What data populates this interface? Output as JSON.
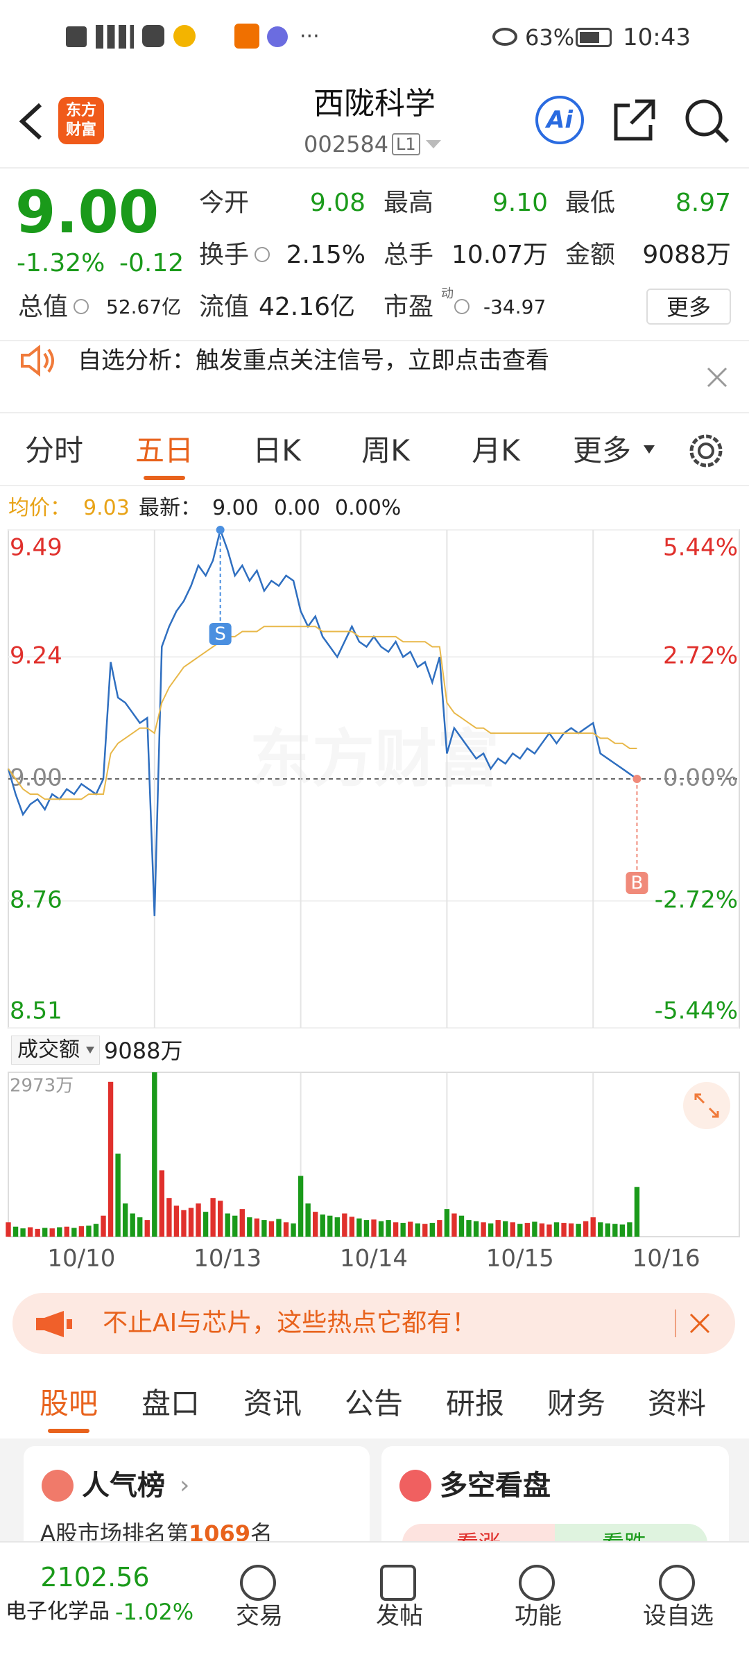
{
  "status_bar": {
    "battery": "63%",
    "time": "10:43"
  },
  "header": {
    "logo_lines": [
      "东方",
      "财富"
    ],
    "title": "西陇科学",
    "code": "002584",
    "level": "L1",
    "ai": "Ai"
  },
  "quote": {
    "price": "9.00",
    "change_pct": "-1.32%",
    "change": "-0.12",
    "pe_tag": "动",
    "more": "更多",
    "fields": [
      {
        "label": "今开",
        "value": "9.08",
        "color": "#1a9a1a"
      },
      {
        "label": "最高",
        "value": "9.10",
        "color": "#1a9a1a"
      },
      {
        "label": "最低",
        "value": "8.97",
        "color": "#1a9a1a"
      },
      {
        "label": "换手",
        "value": "2.15%",
        "color": "#222222"
      },
      {
        "label": "总手",
        "value": "10.07万",
        "color": "#222222"
      },
      {
        "label": "金额",
        "value": "9088万",
        "color": "#222222"
      },
      {
        "label": "总值",
        "value": "52.67亿",
        "color": "#222222"
      },
      {
        "label": "流值",
        "value": "42.16亿",
        "color": "#222222"
      },
      {
        "label": "市盈",
        "value": "-34.97",
        "color": "#222222"
      }
    ]
  },
  "notice": "自选分析：触发重点关注信号，立即点击查看",
  "period_tabs": {
    "items": [
      "分时",
      "五日",
      "日K",
      "周K",
      "月K",
      "更多"
    ],
    "active": 1
  },
  "summary": {
    "avg_label": "均价：",
    "avg": "9.03",
    "latest_label": "最新：",
    "latest": "9.00",
    "change": "0.00",
    "change_pct": "0.00%"
  },
  "chart_data": [
    {
      "type": "line",
      "watermark": "东方财富",
      "xlim": [
        0,
        100
      ],
      "ylim": [
        8.51,
        9.49
      ],
      "yticks": [
        9.49,
        9.24,
        {
          "value": 9,
          "label": "9.00"
        },
        8.76,
        8.51
      ],
      "ytick_colors": [
        "#e0302c",
        "#e0302c",
        "#888888",
        "#1a9a1a",
        "#1a9a1a"
      ],
      "y2_labels": [
        "5.44%",
        "2.72%",
        "0.00%",
        "-2.72%",
        "-5.44%"
      ],
      "series": [
        {
          "color": "#2f6fc0",
          "values": [
            9.02,
            8.97,
            8.93,
            8.95,
            8.96,
            8.94,
            8.97,
            8.96,
            8.98,
            8.97,
            8.99,
            8.98,
            8.97,
            9.0,
            9.23,
            9.16,
            9.15,
            9.13,
            9.11,
            9.12,
            8.73,
            9.26,
            9.3,
            9.33,
            9.35,
            9.38,
            9.42,
            9.4,
            9.43,
            9.49,
            9.45,
            9.4,
            9.42,
            9.39,
            9.41,
            9.37,
            9.39,
            9.38,
            9.4,
            9.39,
            9.33,
            9.3,
            9.32,
            9.28,
            9.26,
            9.24,
            9.27,
            9.3,
            9.27,
            9.26,
            9.28,
            9.26,
            9.25,
            9.27,
            9.24,
            9.25,
            9.22,
            9.23,
            9.19,
            9.24,
            9.05,
            9.1,
            9.08,
            9.06,
            9.04,
            9.05,
            9.02,
            9.04,
            9.03,
            9.05,
            9.04,
            9.06,
            9.05,
            9.07,
            9.09,
            9.07,
            9.09,
            9.1,
            9.09,
            9.1,
            9.11,
            9.05,
            9.04,
            9.03,
            9.02,
            9.01,
            9.0
          ]
        },
        {
          "color": "#e8b84a",
          "values": [
            9.02,
            9.0,
            8.98,
            8.97,
            8.97,
            8.96,
            8.96,
            8.96,
            8.96,
            8.96,
            8.96,
            8.97,
            8.97,
            8.97,
            9.05,
            9.07,
            9.08,
            9.09,
            9.1,
            9.1,
            9.09,
            9.15,
            9.18,
            9.2,
            9.22,
            9.23,
            9.24,
            9.25,
            9.26,
            9.27,
            9.28,
            9.28,
            9.29,
            9.29,
            9.29,
            9.3,
            9.3,
            9.3,
            9.3,
            9.3,
            9.3,
            9.3,
            9.3,
            9.29,
            9.29,
            9.29,
            9.29,
            9.29,
            9.28,
            9.28,
            9.28,
            9.28,
            9.28,
            9.28,
            9.27,
            9.27,
            9.27,
            9.27,
            9.26,
            9.26,
            9.15,
            9.13,
            9.12,
            9.11,
            9.1,
            9.1,
            9.09,
            9.09,
            9.09,
            9.09,
            9.09,
            9.09,
            9.09,
            9.09,
            9.09,
            9.09,
            9.09,
            9.09,
            9.09,
            9.09,
            9.09,
            9.08,
            9.08,
            9.07,
            9.07,
            9.06,
            9.06
          ]
        }
      ],
      "markers": [
        {
          "label": "S",
          "index": 29,
          "color": "#4a8fe0"
        },
        {
          "label": "B",
          "index": 86,
          "color": "#f08a7a"
        }
      ]
    },
    {
      "type": "bar",
      "indicator": "成交额",
      "total": "9088万",
      "xlim": [
        0,
        100
      ],
      "ylim": [
        0,
        2973
      ],
      "yticks": [
        {
          "value": 2973,
          "label": "2973万"
        }
      ],
      "xticks": [
        {
          "value": 10,
          "label": "10/10"
        },
        {
          "value": 30,
          "label": "10/13"
        },
        {
          "value": 50,
          "label": "10/14"
        },
        {
          "value": 70,
          "label": "10/15"
        },
        {
          "value": 90,
          "label": "10/16"
        }
      ],
      "up_color": "#e0302c",
      "down_color": "#1a9a1a",
      "values": [
        260,
        180,
        150,
        170,
        140,
        160,
        150,
        170,
        180,
        160,
        190,
        200,
        230,
        380,
        2800,
        1500,
        600,
        420,
        350,
        300,
        2973,
        1200,
        700,
        560,
        480,
        520,
        600,
        450,
        700,
        650,
        420,
        380,
        500,
        350,
        330,
        300,
        280,
        320,
        260,
        240,
        1100,
        600,
        450,
        400,
        380,
        350,
        420,
        360,
        330,
        300,
        310,
        280,
        300,
        260,
        250,
        270,
        240,
        230,
        250,
        300,
        500,
        420,
        380,
        300,
        280,
        260,
        240,
        300,
        280,
        260,
        230,
        250,
        270,
        240,
        220,
        260,
        250,
        240,
        230,
        280,
        350,
        260,
        240,
        230,
        220,
        260,
        900
      ]
    }
  ],
  "ad_banner": "不止AI与芯片，这些热点它都有！",
  "section_tabs": {
    "items": [
      "股吧",
      "盘口",
      "资讯",
      "公告",
      "研报",
      "财务",
      "资料"
    ],
    "active": 0
  },
  "cards": [
    {
      "title": "人气榜",
      "text_prefix": "A股市场排名第",
      "rank": "1069",
      "text_suffix": "名"
    },
    {
      "title": "多空看盘",
      "bull": "看涨",
      "bear": "看跌"
    }
  ],
  "bottom_nav": {
    "index_value": "2102.56",
    "index_name": "电子化学品",
    "index_change": "-1.02%",
    "items": [
      "交易",
      "发帖",
      "功能",
      "设自选"
    ]
  }
}
